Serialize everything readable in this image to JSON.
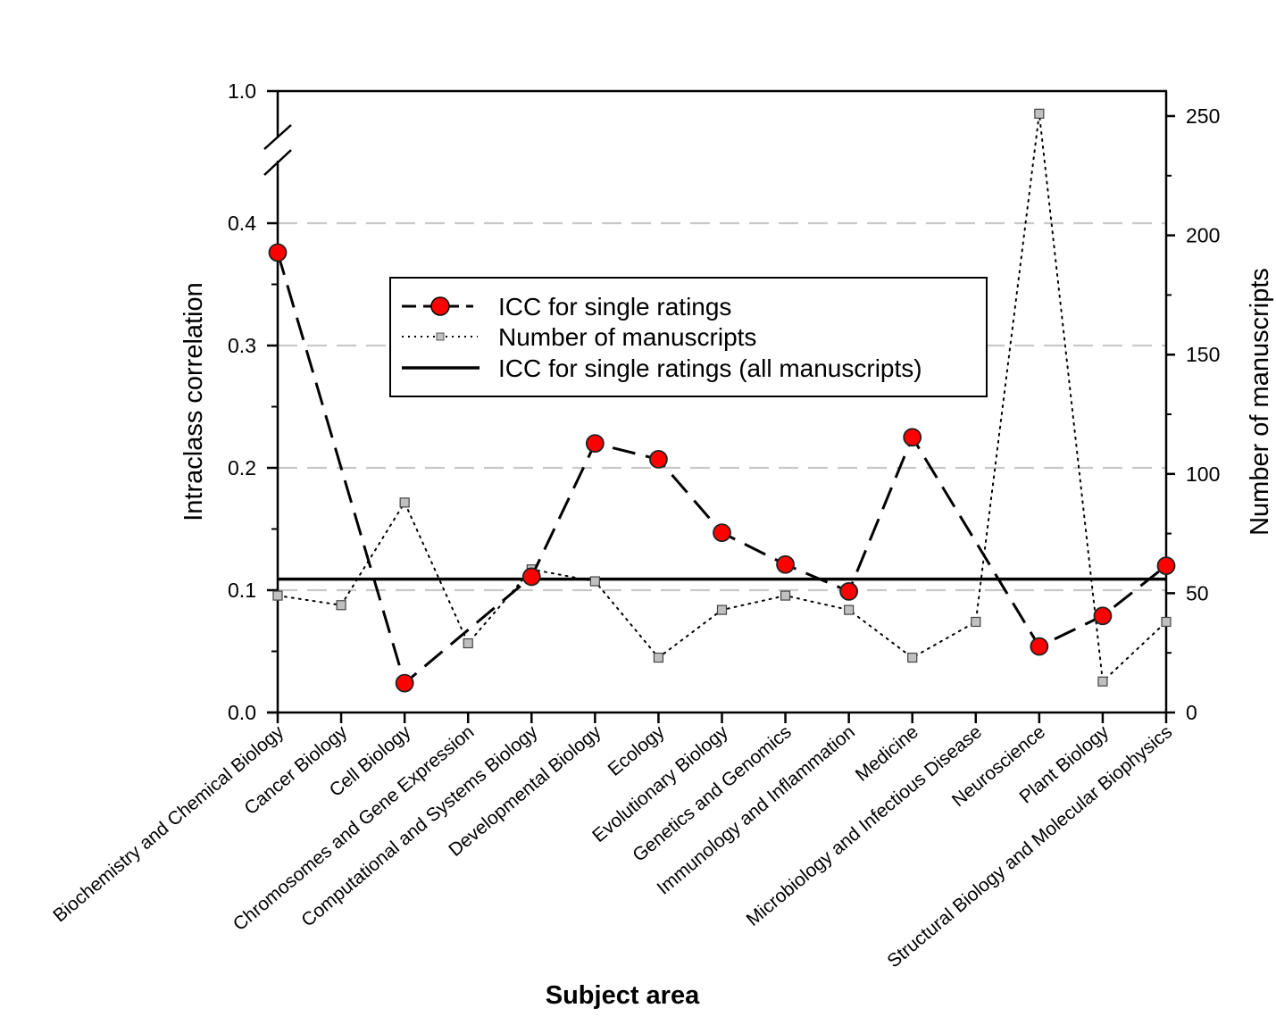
{
  "chart_data": {
    "type": "line",
    "title": "",
    "xlabel": "Subject area",
    "ylabel": "Intraclass correlation",
    "y2label": "Number of manuscripts",
    "categories": [
      "Biochemistry and Chemical Biology",
      "Cancer Biology",
      "Cell Biology",
      "Chromosomes and Gene Expression",
      "Computational and Systems Biology",
      "Developmental Biology",
      "Ecology",
      "Evolutionary Biology",
      "Genetics and Genomics",
      "Immunology and Inflammation",
      "Medicine",
      "Microbiology and Infectious Disease",
      "Neuroscience",
      "Plant Biology",
      "Structural Biology and Molecular Biophysics"
    ],
    "series": [
      {
        "name": "ICC for single ratings",
        "axis": "left",
        "style": "dashed line with red circle markers",
        "color": "#ff0000",
        "values": [
          0.376,
          null,
          0.024,
          null,
          0.111,
          0.22,
          0.207,
          0.147,
          0.121,
          0.099,
          0.225,
          null,
          0.054,
          0.079,
          0.12
        ]
      },
      {
        "name": "Number of manuscripts",
        "axis": "right",
        "style": "dotted line with grey square markers",
        "color": "#c0c0c0",
        "values": [
          49,
          45,
          88,
          29,
          60,
          55,
          23,
          43,
          49,
          43,
          23,
          38,
          251,
          13,
          38
        ]
      },
      {
        "name": "ICC for single ratings (all manuscripts)",
        "axis": "left",
        "style": "solid horizontal reference line",
        "color": "#000000",
        "value": 0.109
      }
    ],
    "y_axis": {
      "range": [
        0.0,
        1.0
      ],
      "axis_break": true,
      "ticks": [
        "0.0",
        "0.1",
        "0.2",
        "0.3",
        "0.4",
        "1.0"
      ]
    },
    "y2_axis": {
      "range": [
        0,
        260
      ],
      "ticks": [
        "0",
        "50",
        "100",
        "150",
        "200",
        "250"
      ]
    },
    "grid": "horizontal dashed at 0.1, 0.2, 0.3, 0.4",
    "legend_position": "top-center"
  }
}
